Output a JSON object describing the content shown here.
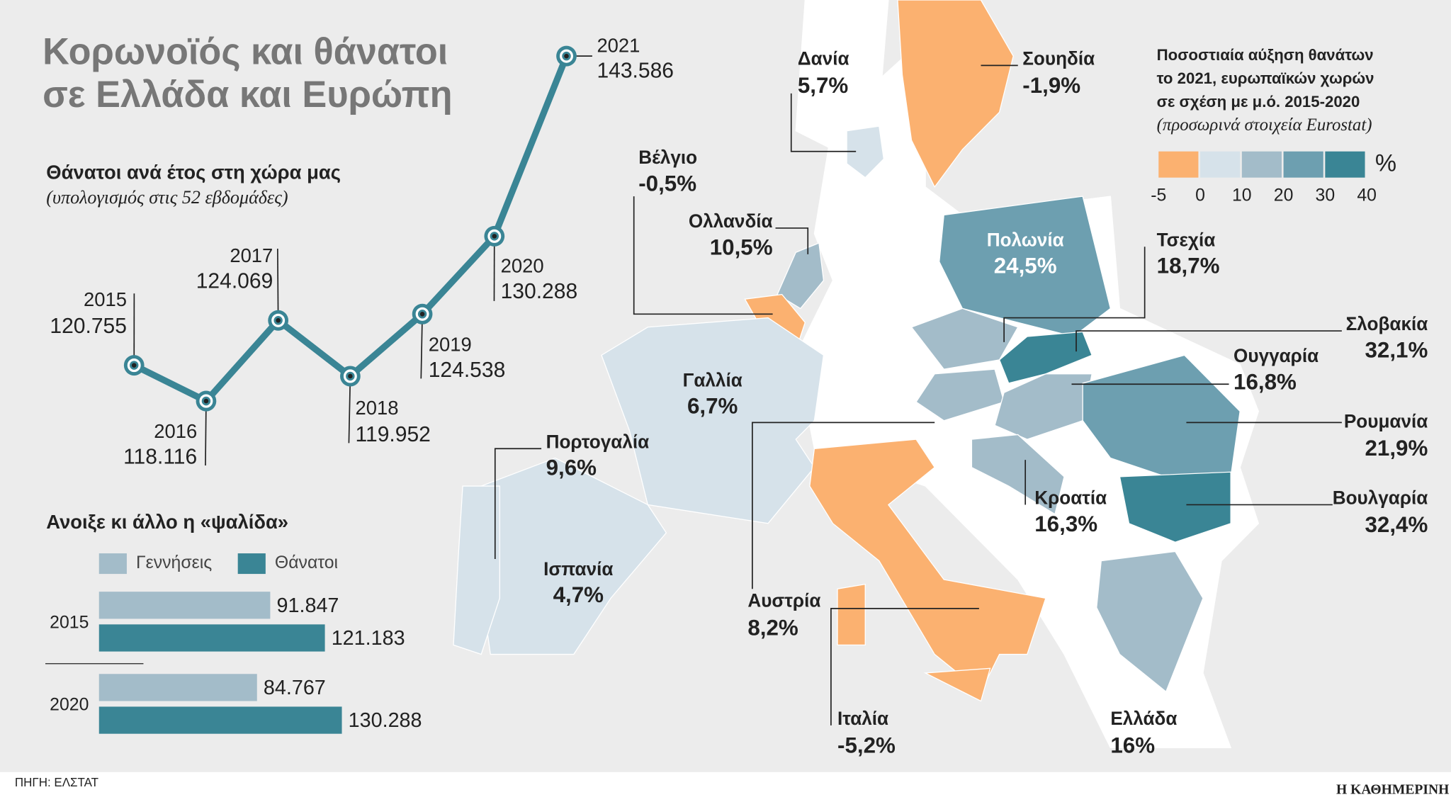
{
  "title_lines": [
    "Κορωνοϊός και θάνατοι",
    "σε Ελλάδα και Ευρώπη"
  ],
  "chart_data": [
    {
      "type": "line",
      "title": "Θάνατοι ανά έτος στη χώρα μας",
      "subtitle": "(υπολογισμός στις 52 εβδομάδες)",
      "x": [
        2015,
        2016,
        2017,
        2018,
        2019,
        2020,
        2021
      ],
      "values": [
        120755,
        118116,
        124069,
        119952,
        124538,
        130288,
        143586
      ],
      "value_labels": [
        "120.755",
        "118.116",
        "124.069",
        "119.952",
        "124.538",
        "130.288",
        "143.586"
      ],
      "color": "#3a8595",
      "xlim": [
        2014,
        2022
      ],
      "ylim": [
        115000,
        145000
      ]
    },
    {
      "type": "bar",
      "orientation": "horizontal",
      "title": "Ανοιξε κι άλλο η «ψαλίδα»",
      "categories": [
        "2015",
        "2020"
      ],
      "series": [
        {
          "name": "Γεννήσεις",
          "color": "#a3bcc9",
          "values": [
            91847,
            84767
          ],
          "value_labels": [
            "91.847",
            "84.767"
          ]
        },
        {
          "name": "Θάνατοι",
          "color": "#3a8595",
          "values": [
            121183,
            130288
          ],
          "value_labels": [
            "121.183",
            "130.288"
          ]
        }
      ],
      "xlim": [
        0,
        140000
      ]
    }
  ],
  "map": {
    "legend": {
      "title_lines": [
        "Ποσοστιαία αύξηση θανάτων",
        "το 2021, ευρωπαϊκών χωρών",
        "σε σχέση με μ.ό. 2015-2020"
      ],
      "note": "(προσωρινά στοιχεία Eurostat)",
      "unit": "%",
      "ticks": [
        -5,
        0,
        10,
        20,
        30,
        40
      ],
      "colors": [
        "#fbb170",
        "#d6e2ea",
        "#a3bcc9",
        "#6d9fb0",
        "#3a8595"
      ]
    },
    "countries": [
      {
        "name": "Δανία",
        "value": "5,7%"
      },
      {
        "name": "Σουηδία",
        "value": "-1,9%"
      },
      {
        "name": "Βέλγιο",
        "value": "-0,5%"
      },
      {
        "name": "Ολλανδία",
        "value": "10,5%"
      },
      {
        "name": "Πολωνία",
        "value": "24,5%"
      },
      {
        "name": "Τσεχία",
        "value": "18,7%"
      },
      {
        "name": "Σλοβακία",
        "value": "32,1%"
      },
      {
        "name": "Ουγγαρία",
        "value": "16,8%"
      },
      {
        "name": "Ρουμανία",
        "value": "21,9%"
      },
      {
        "name": "Βουλγαρία",
        "value": "32,4%"
      },
      {
        "name": "Κροατία",
        "value": "16,3%"
      },
      {
        "name": "Αυστρία",
        "value": "8,2%"
      },
      {
        "name": "Ιταλία",
        "value": "-5,2%"
      },
      {
        "name": "Ελλάδα",
        "value": "16%"
      },
      {
        "name": "Γαλλία",
        "value": "6,7%"
      },
      {
        "name": "Πορτογαλία",
        "value": "9,6%"
      },
      {
        "name": "Ισπανία",
        "value": "4,7%"
      }
    ]
  },
  "source": "ΠΗΓΗ: ΕΛΣΤΑΤ",
  "brand": "Η ΚΑΘΗΜΕΡΙΝΗ"
}
